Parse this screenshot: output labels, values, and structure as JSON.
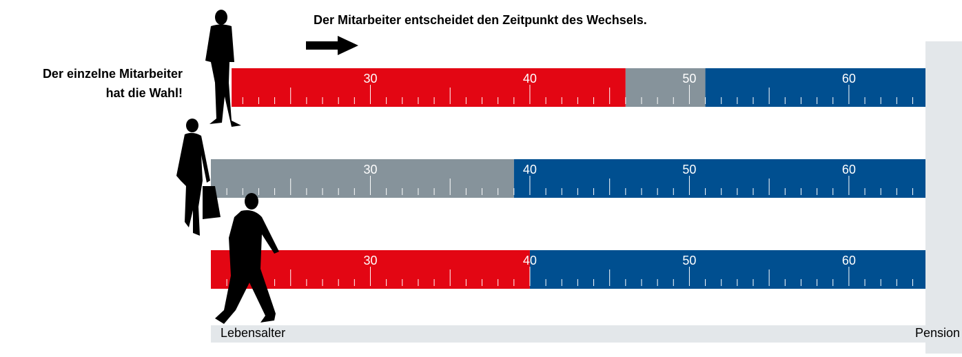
{
  "chart_data": {
    "type": "segments",
    "title": "Der Mitarbeiter entscheidet den Zeitpunkt des Wechsels.",
    "annotation": [
      "Der einzelne Mitarbeiter",
      "hat die Wahl!"
    ],
    "x_label": "Lebensalter",
    "end_label": "Pension",
    "xlim": [
      20,
      64.8
    ],
    "xticks": [
      30,
      40,
      50,
      60
    ],
    "rows": [
      {
        "segments": [
          {
            "start": 21.3,
            "end": 46,
            "color": "#e30613"
          },
          {
            "start": 46,
            "end": 51,
            "color": "#86939b"
          },
          {
            "start": 51,
            "end": 64.8,
            "color": "#004f90"
          }
        ]
      },
      {
        "segments": [
          {
            "start": 20,
            "end": 39,
            "color": "#86939b"
          },
          {
            "start": 39,
            "end": 64.8,
            "color": "#004f90"
          }
        ]
      },
      {
        "segments": [
          {
            "start": 20,
            "end": 40,
            "color": "#e30613"
          },
          {
            "start": 40,
            "end": 64.8,
            "color": "#004f90"
          }
        ]
      }
    ]
  }
}
